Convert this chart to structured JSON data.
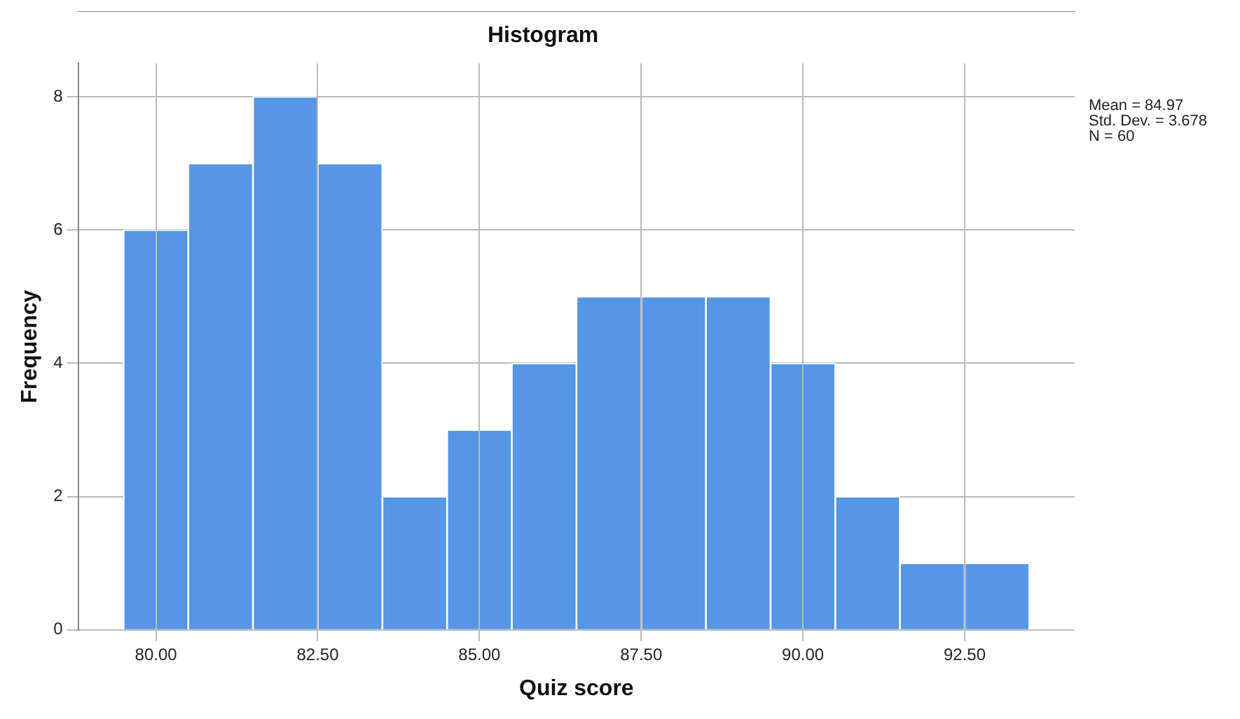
{
  "chart_data": {
    "type": "histogram",
    "title": "Histogram",
    "xlabel": "Quiz score",
    "ylabel": "Frequency",
    "bins": [
      79.5,
      80.5,
      81.5,
      82.5,
      83.5,
      84.5,
      85.5,
      86.5,
      87.5,
      88.5,
      89.5,
      90.5,
      91.5,
      92.5,
      93.5
    ],
    "values": [
      6,
      7,
      8,
      7,
      2,
      3,
      4,
      5,
      5,
      5,
      4,
      2,
      1,
      1
    ],
    "color": "#5596e6",
    "xlim": [
      78.8,
      94.2
    ],
    "xticks": [
      {
        "value": 80,
        "label": "80.00"
      },
      {
        "value": 82.5,
        "label": "82.50"
      },
      {
        "value": 85,
        "label": "85.00"
      },
      {
        "value": 87.5,
        "label": "87.50"
      },
      {
        "value": 90,
        "label": "90.00"
      },
      {
        "value": 92.5,
        "label": "92.50"
      }
    ],
    "ylim": [
      0,
      8.5
    ],
    "yticks": [
      0,
      2,
      4,
      6,
      8
    ],
    "grid": true,
    "legend": false,
    "annotations": [
      "Mean = 84.97",
      "Std. Dev. = 3.678",
      "N = 60"
    ]
  }
}
